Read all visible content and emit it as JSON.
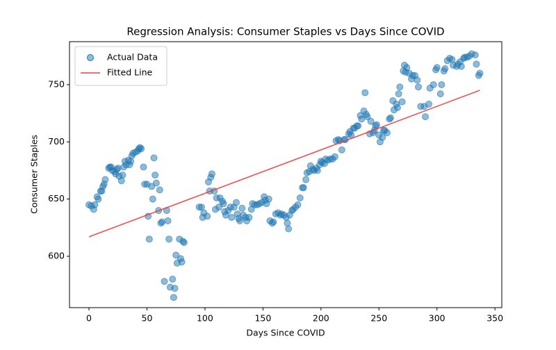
{
  "chart_data": {
    "type": "scatter",
    "title": "Regression Analysis: Consumer Staples vs Days Since COVID",
    "x_label": "Days Since COVID",
    "y_label": "Consumer Staples",
    "xlim": [
      -16.8,
      355.9
    ],
    "ylim": [
      555.1,
      787.6
    ],
    "xticks": [
      0,
      50,
      100,
      150,
      200,
      250,
      300,
      350
    ],
    "yticks": [
      600,
      650,
      700,
      750
    ],
    "legend": "upper left",
    "series": [
      {
        "name": "Actual Data",
        "type": "scatter",
        "color": "#1f77b4",
        "x": [
          0,
          2,
          4,
          5,
          7,
          8,
          10,
          11,
          12,
          13,
          14,
          17,
          18,
          19,
          20,
          22,
          23,
          24,
          25,
          26,
          28,
          29,
          30,
          31,
          32,
          34,
          35,
          36,
          37,
          38,
          40,
          42,
          43,
          44,
          45,
          47,
          48,
          50,
          51,
          52,
          54,
          55,
          56,
          57,
          58,
          60,
          61,
          62,
          63,
          65,
          67,
          68,
          69,
          70,
          72,
          73,
          74,
          75,
          76,
          78,
          79,
          80,
          81,
          82,
          95,
          97,
          98,
          99,
          102,
          103,
          104,
          105,
          106,
          108,
          109,
          110,
          112,
          113,
          115,
          116,
          117,
          118,
          120,
          122,
          123,
          125,
          127,
          128,
          129,
          130,
          132,
          133,
          135,
          136,
          138,
          140,
          141,
          143,
          145,
          147,
          149,
          151,
          152,
          153,
          155,
          156,
          158,
          159,
          161,
          163,
          165,
          166,
          168,
          170,
          171,
          172,
          173,
          175,
          176,
          178,
          180,
          182,
          184,
          185,
          187,
          188,
          190,
          191,
          193,
          194,
          196,
          197,
          199,
          200,
          201,
          203,
          204,
          206,
          208,
          210,
          212,
          213,
          215,
          216,
          218,
          220,
          221,
          224,
          225,
          226,
          228,
          229,
          231,
          232,
          234,
          235,
          237,
          238,
          239,
          240,
          242,
          243,
          245,
          246,
          247,
          248,
          250,
          251,
          253,
          254,
          255,
          257,
          259,
          260,
          262,
          263,
          265,
          266,
          267,
          268,
          270,
          271,
          272,
          273,
          274,
          276,
          278,
          279,
          281,
          283,
          284,
          286,
          289,
          290,
          293,
          294,
          297,
          299,
          300,
          303,
          304,
          306,
          307,
          309,
          311,
          313,
          314,
          317,
          318,
          320,
          321,
          323,
          324,
          326,
          328,
          330,
          333,
          334,
          336,
          337
        ],
        "values": [
          645,
          644,
          641,
          645,
          652,
          650,
          657,
          657,
          661,
          663,
          667,
          677,
          678,
          678,
          675,
          674,
          672,
          676,
          677,
          670,
          666,
          671,
          678,
          683,
          680,
          684,
          680,
          683,
          688,
          690,
          691,
          692,
          694,
          695,
          694,
          678,
          663,
          663,
          635,
          615,
          661,
          650,
          686,
          671,
          664,
          640,
          658,
          629,
          630,
          578,
          640,
          631,
          615,
          573,
          580,
          564,
          572,
          601,
          594,
          615,
          598,
          595,
          613,
          612,
          643,
          643,
          634,
          638,
          635,
          665,
          657,
          669,
          672,
          657,
          641,
          651,
          643,
          651,
          648,
          646,
          639,
          636,
          640,
          643,
          634,
          643,
          647,
          637,
          633,
          631,
          642,
          636,
          634,
          631,
          634,
          641,
          646,
          645,
          645,
          646,
          647,
          652,
          649,
          646,
          650,
          631,
          629,
          630,
          637,
          638,
          636,
          637,
          636,
          634,
          629,
          624,
          636,
          640,
          641,
          643,
          645,
          651,
          660,
          660,
          667,
          673,
          674,
          679,
          676,
          675,
          677,
          675,
          680,
          683,
          682,
          681,
          685,
          684,
          685,
          685,
          687,
          701,
          702,
          701,
          693,
          702,
          702,
          707,
          709,
          706,
          712,
          712,
          714,
          714,
          723,
          720,
          727,
          743,
          724,
          722,
          707,
          718,
          708,
          710,
          714,
          715,
          706,
          700,
          704,
          710,
          710,
          708,
          720,
          721,
          736,
          728,
          733,
          730,
          742,
          748,
          735,
          762,
          767,
          761,
          765,
          760,
          755,
          758,
          758,
          754,
          748,
          731,
          731,
          722,
          733,
          747,
          750,
          763,
          765,
          742,
          750,
          762,
          764,
          771,
          773,
          772,
          767,
          766,
          768,
          770,
          766,
          773,
          774,
          774,
          775,
          777,
          776,
          768,
          758,
          760
        ]
      },
      {
        "name": "Fitted Line",
        "type": "line",
        "color": "#e8403d",
        "x": [
          0,
          337
        ],
        "values": [
          617,
          745.1
        ]
      }
    ]
  }
}
